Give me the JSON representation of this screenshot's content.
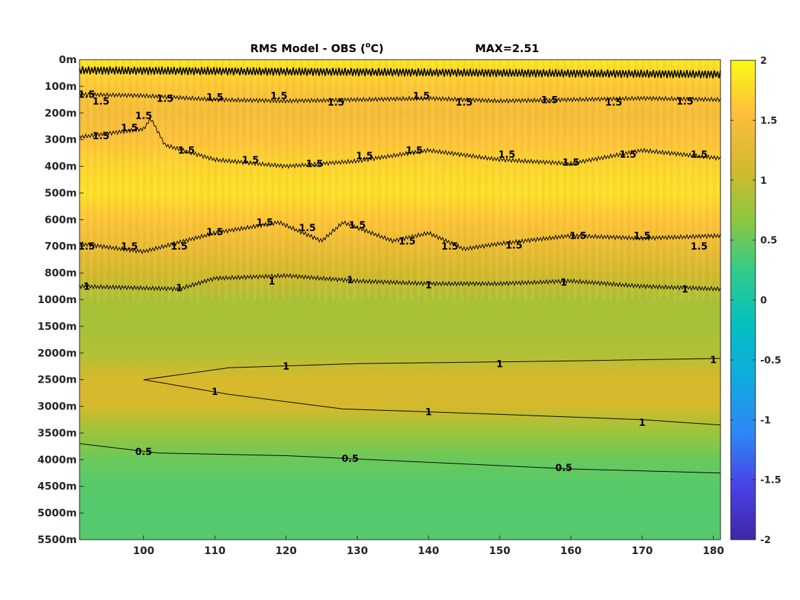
{
  "chart_data": {
    "type": "heatmap",
    "title": "RMS Model - OBS (",
    "title_unit_sup": "o",
    "title_unit": "C)",
    "max_label": "MAX=2.51",
    "x_range": [
      91,
      181
    ],
    "x_ticks": [
      "100",
      "110",
      "120",
      "130",
      "140",
      "150",
      "160",
      "170",
      "180"
    ],
    "y_ticks": [
      "0m",
      "100m",
      "200m",
      "300m",
      "400m",
      "500m",
      "600m",
      "700m",
      "800m",
      "1000m",
      "1500m",
      "2000m",
      "2500m",
      "3000m",
      "3500m",
      "4000m",
      "4500m",
      "5000m",
      "5500m"
    ],
    "colorbar": {
      "range": [
        -2,
        2
      ],
      "ticks": [
        "2",
        "1.5",
        "1",
        "0.5",
        "0",
        "-0.5",
        "-1",
        "-1.5",
        "-2"
      ],
      "colors": [
        "#3e26a8",
        "#4742e5",
        "#2e87f7",
        "#10aae0",
        "#03bfc1",
        "#2fcb8c",
        "#8cc73f",
        "#d6b92c",
        "#fdbe3c",
        "#f9fb15"
      ]
    },
    "depth_profile": [
      {
        "level": 0,
        "value": 1.85
      },
      {
        "level": 1,
        "value": 1.62
      },
      {
        "level": 2,
        "value": 1.45
      },
      {
        "level": 3,
        "value": 1.58
      },
      {
        "level": 4,
        "value": 1.72
      },
      {
        "level": 5,
        "value": 1.8
      },
      {
        "level": 6,
        "value": 1.6
      },
      {
        "level": 7,
        "value": 1.35
      },
      {
        "level": 8,
        "value": 1.1
      },
      {
        "level": 9,
        "value": 0.85
      },
      {
        "level": 10,
        "value": 0.82
      },
      {
        "level": 11,
        "value": 0.88
      },
      {
        "level": 12,
        "value": 1.12
      },
      {
        "level": 13,
        "value": 1.1
      },
      {
        "level": 14,
        "value": 0.75
      },
      {
        "level": 15,
        "value": 0.5
      },
      {
        "level": 16,
        "value": 0.42
      },
      {
        "level": 17,
        "value": 0.4
      },
      {
        "level": 18,
        "value": 0.4
      }
    ],
    "contours": [
      {
        "level": "1.5",
        "jagged": true,
        "points": [
          [
            91,
            0.4
          ],
          [
            181,
            0.55
          ]
        ]
      },
      {
        "level": "1.5",
        "jagged": true,
        "points": [
          [
            91,
            1.3
          ],
          [
            100,
            1.35
          ],
          [
            110,
            1.5
          ],
          [
            120,
            1.55
          ],
          [
            130,
            1.5
          ],
          [
            140,
            1.45
          ],
          [
            150,
            1.55
          ],
          [
            160,
            1.5
          ],
          [
            170,
            1.45
          ],
          [
            181,
            1.5
          ]
        ]
      },
      {
        "level": "1.5",
        "jagged": true,
        "points": [
          [
            91,
            2.9
          ],
          [
            100,
            2.6
          ],
          [
            101,
            2.2
          ],
          [
            103,
            3.2
          ],
          [
            110,
            3.75
          ],
          [
            120,
            4.0
          ],
          [
            130,
            3.8
          ],
          [
            140,
            3.4
          ],
          [
            150,
            3.75
          ],
          [
            160,
            3.9
          ],
          [
            170,
            3.4
          ],
          [
            181,
            3.7
          ]
        ]
      },
      {
        "level": "1.5",
        "jagged": true,
        "points": [
          [
            91,
            6.9
          ],
          [
            100,
            7.2
          ],
          [
            110,
            6.5
          ],
          [
            119,
            6.1
          ],
          [
            125,
            6.8
          ],
          [
            128,
            6.1
          ],
          [
            135,
            6.8
          ],
          [
            140,
            6.5
          ],
          [
            145,
            7.1
          ],
          [
            150,
            6.9
          ],
          [
            160,
            6.6
          ],
          [
            170,
            6.7
          ],
          [
            181,
            6.6
          ]
        ]
      },
      {
        "level": "1",
        "jagged": true,
        "points": [
          [
            91,
            8.5
          ],
          [
            105,
            8.6
          ],
          [
            110,
            8.2
          ],
          [
            120,
            8.1
          ],
          [
            130,
            8.3
          ],
          [
            140,
            8.4
          ],
          [
            150,
            8.4
          ],
          [
            160,
            8.3
          ],
          [
            170,
            8.5
          ],
          [
            181,
            8.6
          ]
        ]
      },
      {
        "level": "1",
        "jagged": false,
        "points": [
          [
            100,
            12.0
          ],
          [
            112,
            11.55
          ],
          [
            130,
            11.4
          ],
          [
            160,
            11.3
          ],
          [
            181,
            11.2
          ]
        ]
      },
      {
        "level": "1",
        "jagged": false,
        "points": [
          [
            100,
            12.0
          ],
          [
            112,
            12.55
          ],
          [
            128,
            13.1
          ],
          [
            150,
            13.3
          ],
          [
            170,
            13.5
          ],
          [
            181,
            13.7
          ]
        ]
      },
      {
        "level": "0.5",
        "jagged": false,
        "points": [
          [
            91,
            14.4
          ],
          [
            102,
            14.75
          ],
          [
            120,
            14.85
          ],
          [
            140,
            15.1
          ],
          [
            160,
            15.35
          ],
          [
            181,
            15.5
          ]
        ]
      }
    ],
    "contour_labels": [
      {
        "text": "1.5",
        "x": 92,
        "y": 1.3
      },
      {
        "text": "1.5",
        "x": 94,
        "y": 1.55
      },
      {
        "text": "1.5",
        "x": 103,
        "y": 1.45
      },
      {
        "text": "1.5",
        "x": 110,
        "y": 1.4
      },
      {
        "text": "1.5",
        "x": 119,
        "y": 1.35
      },
      {
        "text": "1.5",
        "x": 127,
        "y": 1.6
      },
      {
        "text": "1.5",
        "x": 139,
        "y": 1.35
      },
      {
        "text": "1.5",
        "x": 145,
        "y": 1.6
      },
      {
        "text": "1.5",
        "x": 157,
        "y": 1.5
      },
      {
        "text": "1.5",
        "x": 166,
        "y": 1.6
      },
      {
        "text": "1.5",
        "x": 176,
        "y": 1.55
      },
      {
        "text": "1.5",
        "x": 94,
        "y": 2.85
      },
      {
        "text": "1.5",
        "x": 98,
        "y": 2.55
      },
      {
        "text": "1.5",
        "x": 100,
        "y": 2.1
      },
      {
        "text": "1.5",
        "x": 106,
        "y": 3.4
      },
      {
        "text": "1.5",
        "x": 115,
        "y": 3.75
      },
      {
        "text": "1.5",
        "x": 124,
        "y": 3.9
      },
      {
        "text": "1.5",
        "x": 131,
        "y": 3.6
      },
      {
        "text": "1.5",
        "x": 138,
        "y": 3.4
      },
      {
        "text": "1.5",
        "x": 151,
        "y": 3.55
      },
      {
        "text": "1.5",
        "x": 160,
        "y": 3.85
      },
      {
        "text": "1.5",
        "x": 168,
        "y": 3.55
      },
      {
        "text": "1.5",
        "x": 178,
        "y": 3.55
      },
      {
        "text": "1.5",
        "x": 92,
        "y": 7.0
      },
      {
        "text": "1.5",
        "x": 98,
        "y": 7.0
      },
      {
        "text": "1.5",
        "x": 105,
        "y": 7.0
      },
      {
        "text": "1.5",
        "x": 110,
        "y": 6.45
      },
      {
        "text": "1.5",
        "x": 117,
        "y": 6.1
      },
      {
        "text": "1.5",
        "x": 123,
        "y": 6.3
      },
      {
        "text": "1.5",
        "x": 130,
        "y": 6.2
      },
      {
        "text": "1.5",
        "x": 137,
        "y": 6.8
      },
      {
        "text": "1.5",
        "x": 143,
        "y": 7.0
      },
      {
        "text": "1.5",
        "x": 152,
        "y": 6.95
      },
      {
        "text": "1.5",
        "x": 161,
        "y": 6.6
      },
      {
        "text": "1.5",
        "x": 170,
        "y": 6.6
      },
      {
        "text": "1.5",
        "x": 178,
        "y": 7.0
      },
      {
        "text": "1",
        "x": 92,
        "y": 8.5
      },
      {
        "text": "1",
        "x": 105,
        "y": 8.55
      },
      {
        "text": "1",
        "x": 118,
        "y": 8.3
      },
      {
        "text": "1",
        "x": 129,
        "y": 8.25
      },
      {
        "text": "1",
        "x": 140,
        "y": 8.45
      },
      {
        "text": "1",
        "x": 159,
        "y": 8.35
      },
      {
        "text": "1",
        "x": 176,
        "y": 8.6
      },
      {
        "text": "1",
        "x": 120,
        "y": 11.5
      },
      {
        "text": "1",
        "x": 150,
        "y": 11.4
      },
      {
        "text": "1",
        "x": 180,
        "y": 11.25
      },
      {
        "text": "1",
        "x": 110,
        "y": 12.45
      },
      {
        "text": "1",
        "x": 140,
        "y": 13.2
      },
      {
        "text": "1",
        "x": 170,
        "y": 13.6
      },
      {
        "text": "0.5",
        "x": 100,
        "y": 14.7
      },
      {
        "text": "0.5",
        "x": 129,
        "y": 14.95
      },
      {
        "text": "0.5",
        "x": 159,
        "y": 15.3
      }
    ]
  }
}
